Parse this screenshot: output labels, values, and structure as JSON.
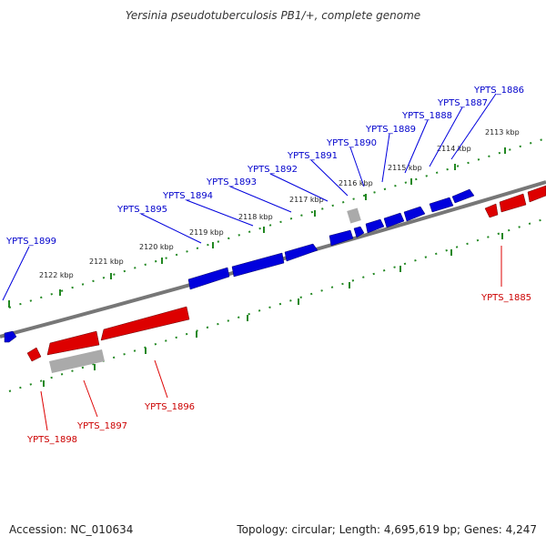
{
  "title": "Yersinia pseudotuberculosis PB1/+, complete genome",
  "footer": {
    "accession": "Accession: NC_010634",
    "topology": "Topology: circular; Length: 4,695,619 bp; Genes: 4,247"
  },
  "colors": {
    "forward": "#0000dd",
    "reverse": "#dd0000",
    "pseudo": "#aaaaaa",
    "tick": "#228822",
    "backbone": "#777777"
  },
  "ticks": [
    "2113 kbp",
    "2114 kbp",
    "2115 kbp",
    "2116 kbp",
    "2117 kbp",
    "2118 kbp",
    "2119 kbp",
    "2120 kbp",
    "2121 kbp",
    "2122 kbp"
  ],
  "forward_genes": [
    "YPTS_1886",
    "YPTS_1887",
    "YPTS_1888",
    "YPTS_1889",
    "YPTS_1890",
    "YPTS_1891",
    "YPTS_1892",
    "YPTS_1893",
    "YPTS_1894",
    "YPTS_1895",
    "YPTS_1899"
  ],
  "reverse_genes": [
    "YPTS_1885",
    "YPTS_1896",
    "YPTS_1897",
    "YPTS_1898"
  ]
}
